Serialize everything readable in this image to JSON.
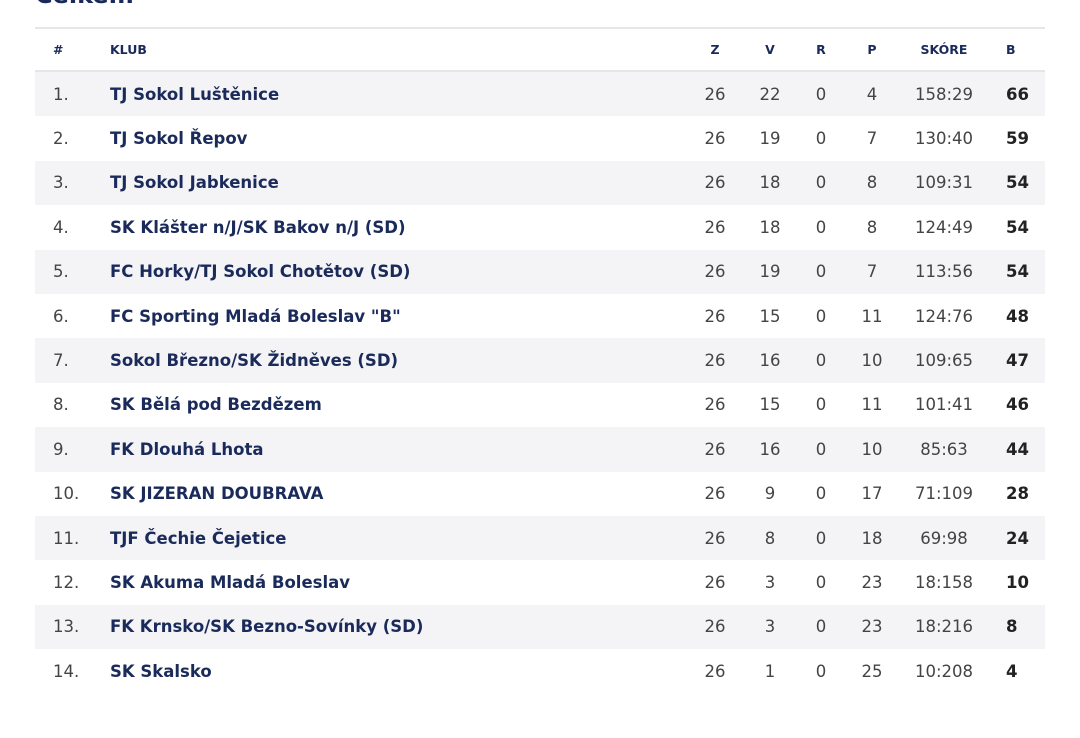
{
  "heading": "Celkem",
  "table": {
    "columns": [
      "#",
      "KLUB",
      "Z",
      "V",
      "R",
      "P",
      "SKÓRE",
      "B"
    ],
    "rows": [
      [
        "1.",
        "TJ Sokol Luštěnice",
        26,
        22,
        0,
        4,
        "158:29",
        66
      ],
      [
        "2.",
        "TJ Sokol Řepov",
        26,
        19,
        0,
        7,
        "130:40",
        59
      ],
      [
        "3.",
        "TJ Sokol Jabkenice",
        26,
        18,
        0,
        8,
        "109:31",
        54
      ],
      [
        "4.",
        "SK Klášter n/J/SK Bakov n/J (SD)",
        26,
        18,
        0,
        8,
        "124:49",
        54
      ],
      [
        "5.",
        "FC Horky/TJ Sokol Chotětov (SD)",
        26,
        19,
        0,
        7,
        "113:56",
        54
      ],
      [
        "6.",
        "FC Sporting Mladá Boleslav \"B\"",
        26,
        15,
        0,
        11,
        "124:76",
        48
      ],
      [
        "7.",
        "Sokol Březno/SK Židněves (SD)",
        26,
        16,
        0,
        10,
        "109:65",
        47
      ],
      [
        "8.",
        "SK Bělá pod Bezdězem",
        26,
        15,
        0,
        11,
        "101:41",
        46
      ],
      [
        "9.",
        "FK Dlouhá Lhota",
        26,
        16,
        0,
        10,
        "85:63",
        44
      ],
      [
        "10.",
        "SK JIZERAN DOUBRAVA",
        26,
        9,
        0,
        17,
        "71:109",
        28
      ],
      [
        "11.",
        "TJF Čechie Čejetice",
        26,
        8,
        0,
        18,
        "69:98",
        24
      ],
      [
        "12.",
        "SK Akuma Mladá Boleslav",
        26,
        3,
        0,
        23,
        "18:158",
        10
      ],
      [
        "13.",
        "FK Krnsko/SK Bezno-Sovínky (SD)",
        26,
        3,
        0,
        23,
        "18:216",
        8
      ],
      [
        "14.",
        "SK Skalsko",
        26,
        1,
        0,
        25,
        "10:208",
        4
      ]
    ]
  }
}
